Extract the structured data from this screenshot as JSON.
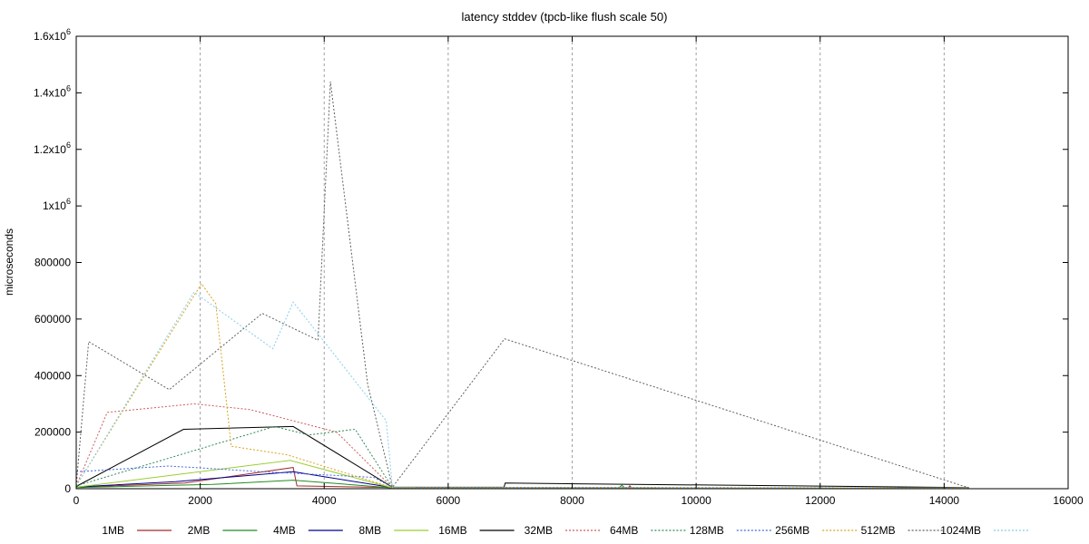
{
  "chart_data": {
    "type": "line",
    "title": "latency stddev (tpcb-like flush scale 50)",
    "xlabel": "",
    "ylabel": "microseconds",
    "xlim": [
      0,
      16000
    ],
    "ylim": [
      0,
      1600000
    ],
    "x_ticks": [
      {
        "value": 0,
        "label": "0"
      },
      {
        "value": 2000,
        "label": "2000"
      },
      {
        "value": 4000,
        "label": "4000"
      },
      {
        "value": 6000,
        "label": "6000"
      },
      {
        "value": 8000,
        "label": "8000"
      },
      {
        "value": 10000,
        "label": "10000"
      },
      {
        "value": 12000,
        "label": "12000"
      },
      {
        "value": 14000,
        "label": "14000"
      },
      {
        "value": 16000,
        "label": "16000"
      }
    ],
    "y_ticks": [
      {
        "value": 0,
        "label": "0"
      },
      {
        "value": 200000,
        "label": "200000"
      },
      {
        "value": 400000,
        "label": "400000"
      },
      {
        "value": 600000,
        "label": "600000"
      },
      {
        "value": 800000,
        "label": "800000"
      },
      {
        "value": 1000000,
        "label": "1x10",
        "exp": "6"
      },
      {
        "value": 1200000,
        "label": "1.2x10",
        "exp": "6"
      },
      {
        "value": 1400000,
        "label": "1.4x10",
        "exp": "6"
      },
      {
        "value": 1600000,
        "label": "1.6x10",
        "exp": "6"
      }
    ],
    "grid": {
      "vertical_dashed": true,
      "horizontal": false
    },
    "legend_position": "bottom",
    "series": [
      {
        "name": "1MB",
        "color": "#a52a2a",
        "dash": "solid",
        "points": [
          [
            0,
            5000
          ],
          [
            1750,
            20000
          ],
          [
            3500,
            75000
          ],
          [
            3560,
            10000
          ],
          [
            5100,
            4000
          ],
          [
            8900,
            3000
          ],
          [
            8930,
            10000
          ],
          [
            8960,
            3000
          ],
          [
            14400,
            3000
          ]
        ]
      },
      {
        "name": "2MB",
        "color": "#228b22",
        "dash": "solid",
        "points": [
          [
            0,
            4000
          ],
          [
            2200,
            15000
          ],
          [
            3500,
            30000
          ],
          [
            5100,
            3000
          ],
          [
            8750,
            3000
          ],
          [
            8800,
            12000
          ],
          [
            8850,
            3000
          ],
          [
            14400,
            2000
          ]
        ]
      },
      {
        "name": "4MB",
        "color": "#00008b",
        "dash": "solid",
        "points": [
          [
            0,
            6000
          ],
          [
            1600,
            25000
          ],
          [
            3500,
            60000
          ],
          [
            5100,
            4000
          ],
          [
            14400,
            3000
          ]
        ]
      },
      {
        "name": "8MB",
        "color": "#9acd32",
        "dash": "solid",
        "points": [
          [
            0,
            5000
          ],
          [
            3450,
            100000
          ],
          [
            5100,
            3000
          ],
          [
            14400,
            2000
          ]
        ]
      },
      {
        "name": "16MB",
        "color": "#000000",
        "dash": "solid",
        "points": [
          [
            0,
            8000
          ],
          [
            1730,
            210000
          ],
          [
            3500,
            220000
          ],
          [
            5100,
            5000
          ],
          [
            6900,
            5000
          ],
          [
            6920,
            20000
          ],
          [
            14400,
            4000
          ]
        ]
      },
      {
        "name": "32MB",
        "color": "#cd5c5c",
        "dash": "dotted",
        "points": [
          [
            0,
            10000
          ],
          [
            500,
            270000
          ],
          [
            1900,
            300000
          ],
          [
            2800,
            280000
          ],
          [
            4200,
            200000
          ],
          [
            5100,
            4000
          ],
          [
            14400,
            3000
          ]
        ]
      },
      {
        "name": "64MB",
        "color": "#2e8b57",
        "dash": "dotted",
        "points": [
          [
            0,
            10000
          ],
          [
            3200,
            220000
          ],
          [
            3750,
            190000
          ],
          [
            4500,
            210000
          ],
          [
            5100,
            4000
          ],
          [
            14400,
            3000
          ]
        ]
      },
      {
        "name": "128MB",
        "color": "#4169e1",
        "dash": "dotted",
        "points": [
          [
            0,
            60000
          ],
          [
            1500,
            80000
          ],
          [
            3000,
            60000
          ],
          [
            4800,
            40000
          ],
          [
            5100,
            5000
          ],
          [
            14400,
            3000
          ]
        ]
      },
      {
        "name": "256MB",
        "color": "#daa520",
        "dash": "dotted",
        "points": [
          [
            0,
            10000
          ],
          [
            2020,
            725000
          ],
          [
            2250,
            655000
          ],
          [
            2500,
            150000
          ],
          [
            3400,
            120000
          ],
          [
            5100,
            4000
          ],
          [
            14400,
            3000
          ]
        ]
      },
      {
        "name": "512MB",
        "color": "#606060",
        "dash": "dotted",
        "points": [
          [
            0,
            10000
          ],
          [
            200,
            520000
          ],
          [
            1500,
            350000
          ],
          [
            3000,
            620000
          ],
          [
            3900,
            525000
          ],
          [
            4100,
            1440000
          ],
          [
            4700,
            370000
          ],
          [
            6910,
            530000
          ],
          [
            5100,
            5000
          ],
          [
            14400,
            3000
          ]
        ]
      },
      {
        "name": "1024MB",
        "color": "#87ceeb",
        "dash": "dotted",
        "points": [
          [
            0,
            10000
          ],
          [
            1900,
            695000
          ],
          [
            3500,
            660000
          ],
          [
            3170,
            495000
          ],
          [
            5000,
            240000
          ],
          [
            5100,
            4000
          ],
          [
            14400,
            3000
          ]
        ]
      }
    ]
  }
}
